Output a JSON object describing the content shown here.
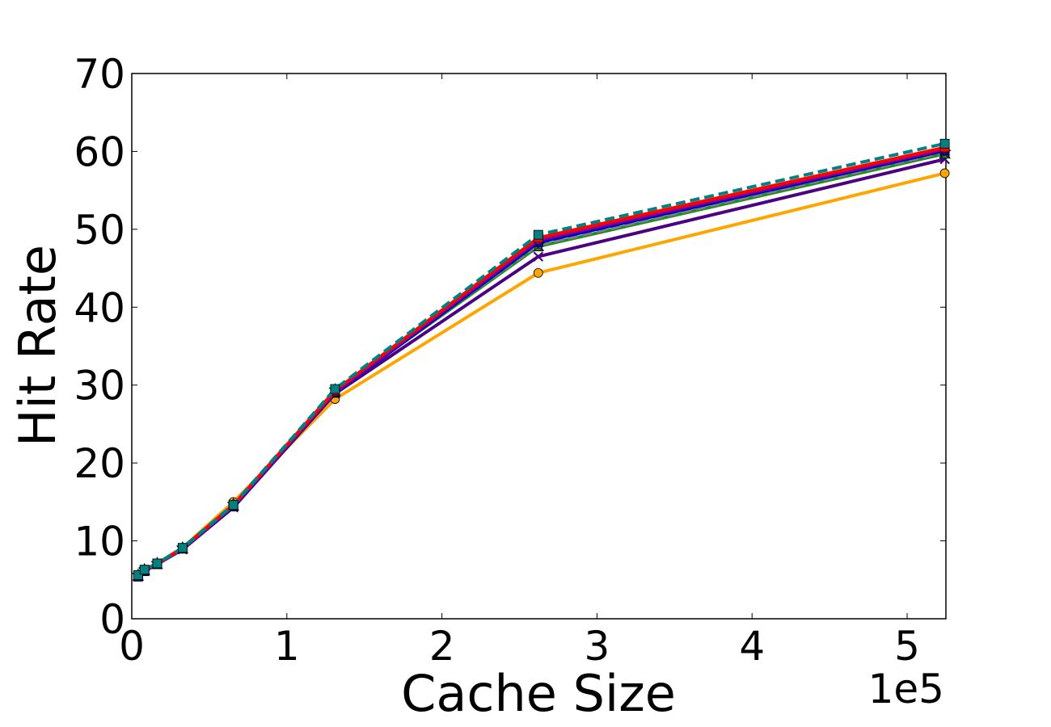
{
  "chart_data": {
    "type": "line",
    "title": "",
    "xlabel": "Cache Size",
    "ylabel": "Hit Rate",
    "x_offset_label": "1e5",
    "xlim": [
      0,
      5.25
    ],
    "ylim": [
      0,
      70
    ],
    "xticks": [
      0,
      1,
      2,
      3,
      4,
      5
    ],
    "yticks": [
      0,
      10,
      20,
      30,
      40,
      50,
      60,
      70
    ],
    "x_tick_labels": [
      "0",
      "1",
      "2",
      "3",
      "4",
      "5"
    ],
    "y_tick_labels": [
      "0",
      "10",
      "20",
      "30",
      "40",
      "50",
      "60",
      "70"
    ],
    "grid": false,
    "x": [
      0.04096,
      0.08192,
      0.16384,
      0.32768,
      0.65536,
      1.31072,
      2.62144,
      5.24288
    ],
    "series": [
      {
        "color": "#FFA500",
        "marker": "circle",
        "dashed": false,
        "values": [
          5.6,
          6.3,
          7.1,
          9.1,
          15.0,
          28.2,
          44.4,
          57.2
        ]
      },
      {
        "color": "#4B0082",
        "marker": "x",
        "dashed": false,
        "values": [
          5.5,
          6.2,
          7.0,
          8.9,
          14.3,
          28.9,
          46.5,
          59.0
        ]
      },
      {
        "color": "#228B22",
        "marker": "triangle",
        "dashed": false,
        "values": [
          5.5,
          6.2,
          7.0,
          9.0,
          14.5,
          29.2,
          47.8,
          59.7
        ]
      },
      {
        "color": "#808080",
        "marker": "star",
        "dashed": true,
        "values": [
          5.6,
          6.3,
          7.1,
          9.1,
          14.7,
          29.4,
          48.0,
          59.9
        ]
      },
      {
        "color": "#0000CD",
        "marker": "square",
        "dashed": false,
        "values": [
          5.4,
          6.1,
          7.0,
          9.0,
          14.4,
          29.0,
          48.3,
          60.1
        ]
      },
      {
        "color": "#8B008B",
        "marker": "circle",
        "dashed": false,
        "values": [
          5.5,
          6.2,
          7.0,
          9.0,
          14.5,
          29.1,
          48.6,
          60.3
        ]
      },
      {
        "color": "#FF0000",
        "marker": "square",
        "dashed": false,
        "values": [
          5.6,
          6.3,
          7.1,
          9.1,
          14.6,
          29.3,
          48.9,
          60.5
        ]
      },
      {
        "color": "#008080",
        "marker": "square",
        "dashed": true,
        "values": [
          5.6,
          6.3,
          7.1,
          9.1,
          14.6,
          29.5,
          49.3,
          61.0
        ]
      }
    ]
  }
}
